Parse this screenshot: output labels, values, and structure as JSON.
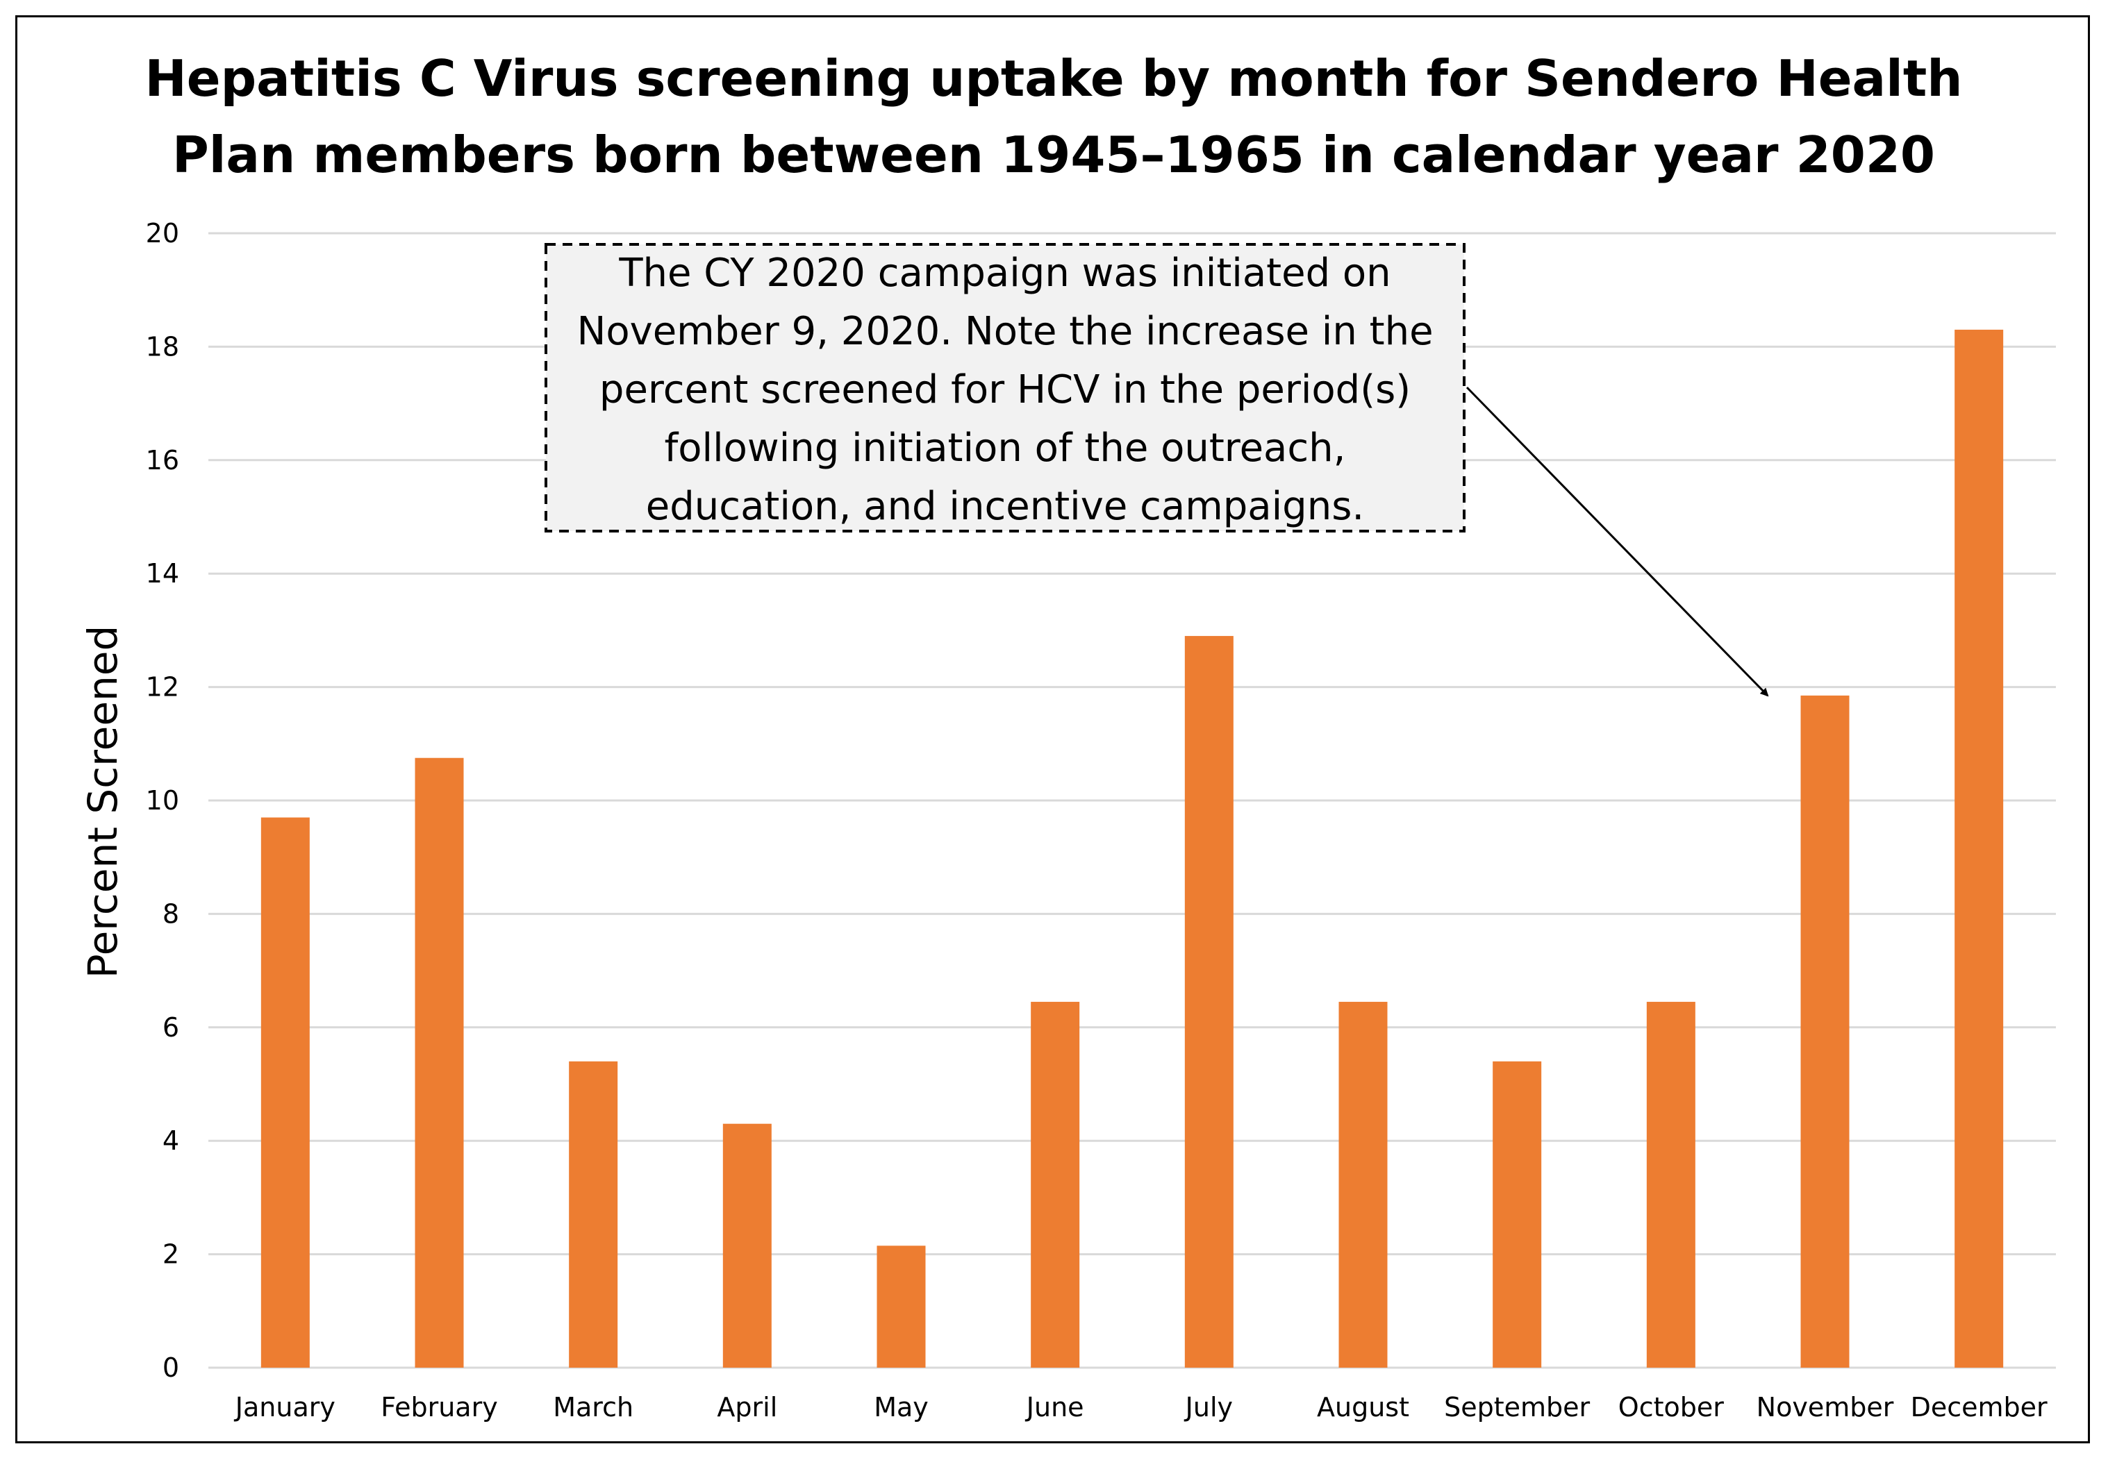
{
  "chart_data": {
    "type": "bar",
    "title": [
      "Hepatitis C Virus screening uptake by month for Sendero Health",
      "Plan members born between 1945–1965 in calendar year 2020"
    ],
    "xlabel": "",
    "ylabel": "Percent Screened",
    "ylim": [
      0,
      20
    ],
    "yticks": [
      0,
      2,
      4,
      6,
      8,
      10,
      12,
      14,
      16,
      18,
      20
    ],
    "grid": true,
    "legend": "none",
    "categories": [
      "January",
      "February",
      "March",
      "April",
      "May",
      "June",
      "July",
      "August",
      "September",
      "October",
      "November",
      "December"
    ],
    "series": [
      {
        "name": "Percent Screened",
        "values": [
          9.7,
          10.75,
          5.4,
          4.3,
          2.15,
          6.45,
          12.9,
          6.45,
          5.4,
          6.45,
          11.85,
          18.3
        ]
      }
    ],
    "colors": {
      "bar": "#ED7D31",
      "grid": "#D9D9D9",
      "annotation_fill": "#F2F2F2"
    },
    "annotation": {
      "lines": [
        "The CY 2020 campaign was initiated on",
        "November 9, 2020. Note the increase in the",
        "percent screened for HCV in the period(s)",
        "following initiation of the outreach,",
        "education, and incentive campaigns."
      ],
      "points_to": "November"
    }
  }
}
